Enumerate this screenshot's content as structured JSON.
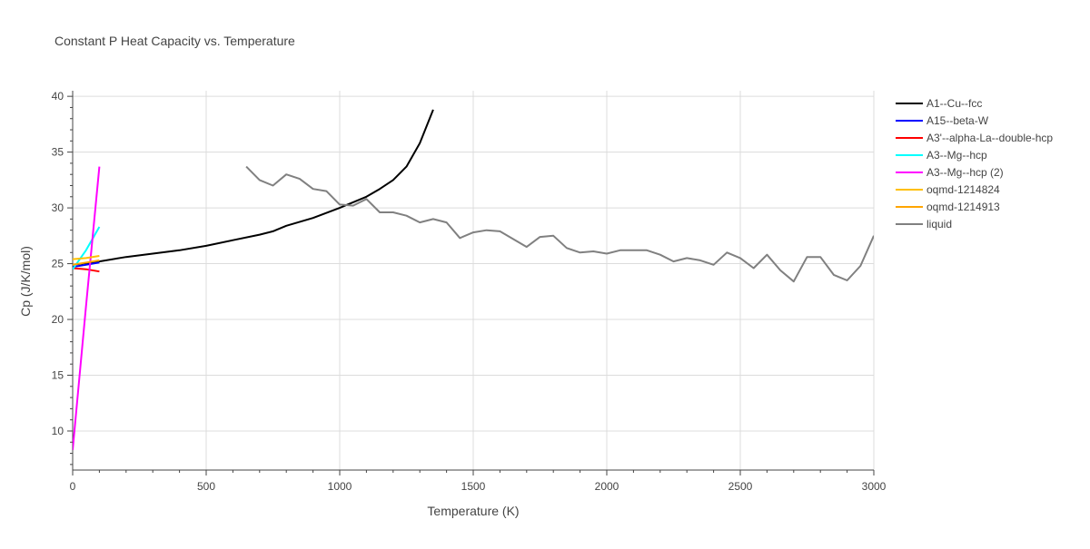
{
  "chart_data": {
    "type": "line",
    "title": "Constant P Heat Capacity vs. Temperature",
    "xlabel": "Temperature (K)",
    "ylabel": "Cp (J/K/mol)",
    "xlim": [
      0,
      3000
    ],
    "ylim": [
      6.5,
      40.5
    ],
    "xticks": [
      0,
      500,
      1000,
      1500,
      2000,
      2500,
      3000
    ],
    "xtick_labels": [
      "0",
      "500",
      "1000",
      "1500",
      "2000",
      "2500",
      "3000"
    ],
    "yticks": [
      10,
      15,
      20,
      25,
      30,
      35,
      40
    ],
    "ytick_labels": [
      "10",
      "15",
      "20",
      "25",
      "30",
      "35",
      "40"
    ],
    "grid": true,
    "legend_position": "right",
    "series": [
      {
        "name": "A1--Cu--fcc",
        "color": "#000000",
        "x": [
          0,
          100,
          200,
          300,
          400,
          500,
          600,
          700,
          750,
          800,
          900,
          1000,
          1050,
          1100,
          1150,
          1200,
          1250,
          1300,
          1350
        ],
        "y": [
          24.9,
          25.2,
          25.6,
          25.9,
          26.2,
          26.6,
          27.1,
          27.6,
          27.9,
          28.4,
          29.1,
          30.0,
          30.5,
          31.0,
          31.7,
          32.5,
          33.7,
          35.8,
          38.8
        ]
      },
      {
        "name": "A15--beta-W",
        "color": "#0000ff",
        "x": [
          0,
          50,
          100
        ],
        "y": [
          24.7,
          24.9,
          25.1
        ]
      },
      {
        "name": "A3'--alpha-La--double-hcp",
        "color": "#ff0000",
        "x": [
          0,
          50,
          100
        ],
        "y": [
          24.6,
          24.5,
          24.3
        ]
      },
      {
        "name": "A3--Mg--hcp",
        "color": "#00ffff",
        "x": [
          0,
          50,
          100
        ],
        "y": [
          24.5,
          26.2,
          28.3
        ]
      },
      {
        "name": "A3--Mg--hcp (2)",
        "color": "#ff00ff",
        "x": [
          0,
          50,
          100
        ],
        "y": [
          8.3,
          21.2,
          33.7
        ]
      },
      {
        "name": "oqmd-1214824",
        "color": "#ffbf00",
        "x": [
          0,
          50,
          100
        ],
        "y": [
          25.4,
          25.5,
          25.7
        ]
      },
      {
        "name": "oqmd-1214913",
        "color": "#ffa500",
        "x": [
          0,
          50,
          100
        ],
        "y": [
          24.9,
          25.1,
          25.3
        ]
      },
      {
        "name": "liquid",
        "color": "#808080",
        "x": [
          650,
          700,
          750,
          800,
          850,
          900,
          950,
          1000,
          1050,
          1100,
          1150,
          1200,
          1250,
          1300,
          1350,
          1400,
          1450,
          1500,
          1550,
          1600,
          1650,
          1700,
          1750,
          1800,
          1850,
          1900,
          1950,
          2000,
          2050,
          2100,
          2150,
          2200,
          2250,
          2300,
          2350,
          2400,
          2450,
          2500,
          2550,
          2600,
          2650,
          2700,
          2750,
          2800,
          2850,
          2900,
          2950,
          3000
        ],
        "y": [
          33.7,
          32.5,
          32.0,
          33.0,
          32.6,
          31.7,
          31.5,
          30.3,
          30.2,
          30.8,
          29.6,
          29.6,
          29.3,
          28.7,
          29.0,
          28.7,
          27.3,
          27.8,
          28.0,
          27.9,
          27.2,
          26.5,
          27.4,
          27.5,
          26.4,
          26.0,
          26.1,
          25.9,
          26.2,
          26.2,
          26.2,
          25.8,
          25.2,
          25.5,
          25.3,
          24.9,
          26.0,
          25.5,
          24.6,
          25.8,
          24.4,
          23.4,
          25.6,
          25.6,
          24.0,
          23.5,
          24.8,
          27.5
        ]
      }
    ]
  }
}
